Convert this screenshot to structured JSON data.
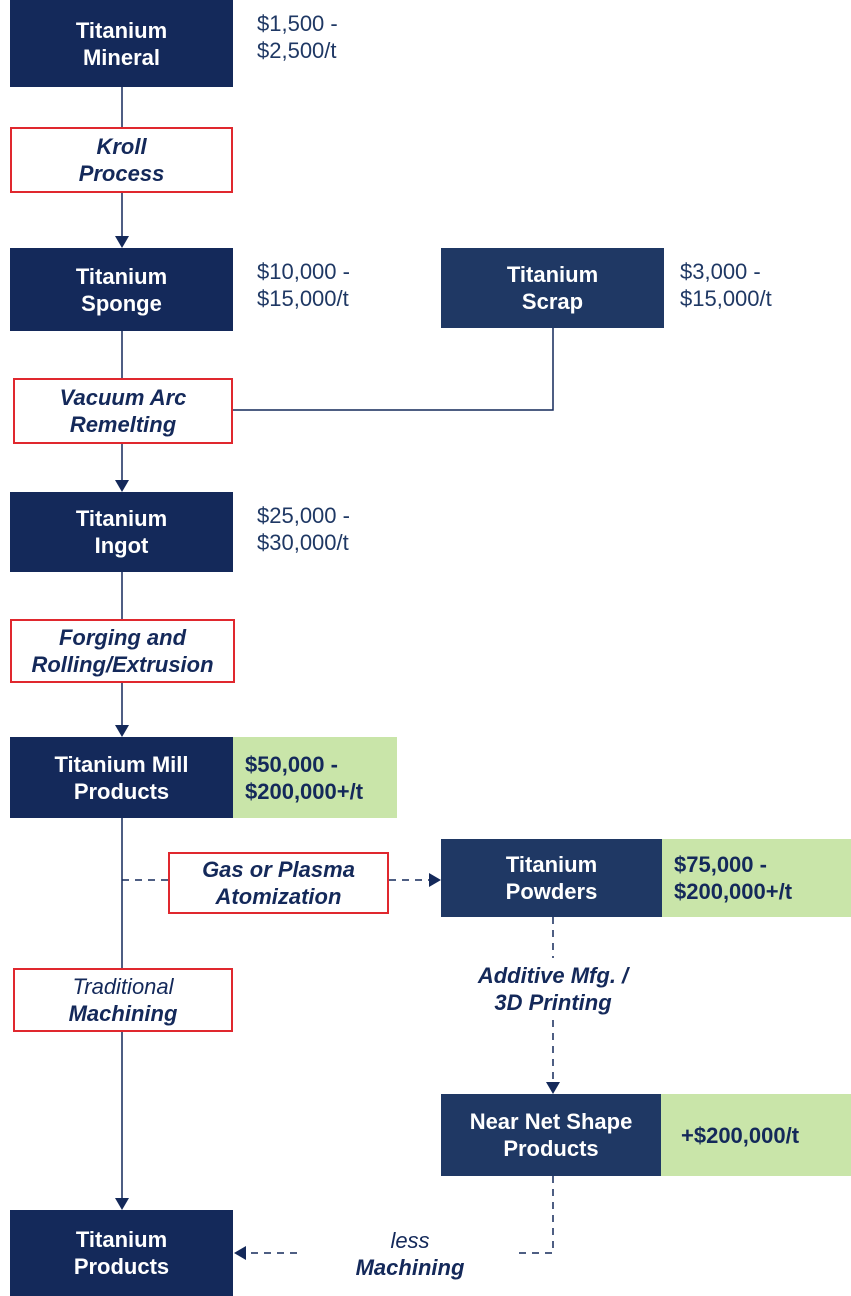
{
  "nodes": [
    {
      "label": [
        "Titanium",
        "Mineral"
      ],
      "price": [
        "$1,500 -",
        "$2,500/t"
      ]
    },
    {
      "label": [
        "Titanium",
        "Sponge"
      ],
      "price": [
        "$10,000 -",
        "$15,000/t"
      ]
    },
    {
      "label": [
        "Titanium",
        "Scrap"
      ],
      "price": [
        "$3,000 -",
        "$15,000/t"
      ]
    },
    {
      "label": [
        "Titanium",
        "Ingot"
      ],
      "price": [
        "$25,000 -",
        "$30,000/t"
      ]
    },
    {
      "label": [
        "Titanium Mill",
        "Products"
      ],
      "price": [
        "$50,000 -",
        "$200,000+/t"
      ]
    },
    {
      "label": [
        "Titanium",
        "Powders"
      ],
      "price": [
        "$75,000 -",
        "$200,000+/t"
      ]
    },
    {
      "label": [
        "Near Net Shape",
        "Products"
      ],
      "price": [
        "+$200,000/t"
      ]
    },
    {
      "label": [
        "Titanium",
        "Products"
      ]
    }
  ],
  "processes": [
    {
      "label": [
        "Kroll",
        "Process"
      ]
    },
    {
      "label": [
        "Vacuum Arc",
        "Remelting"
      ]
    },
    {
      "label": [
        "Forging and",
        "Rolling/Extrusion"
      ]
    },
    {
      "label": [
        "Gas or Plasma",
        "Atomization"
      ]
    },
    {
      "label": [
        "Traditional",
        "Machining"
      ]
    },
    {
      "label": [
        "Additive Mfg. /",
        "3D Printing"
      ]
    },
    {
      "label": [
        "less",
        "Machining"
      ]
    }
  ]
}
